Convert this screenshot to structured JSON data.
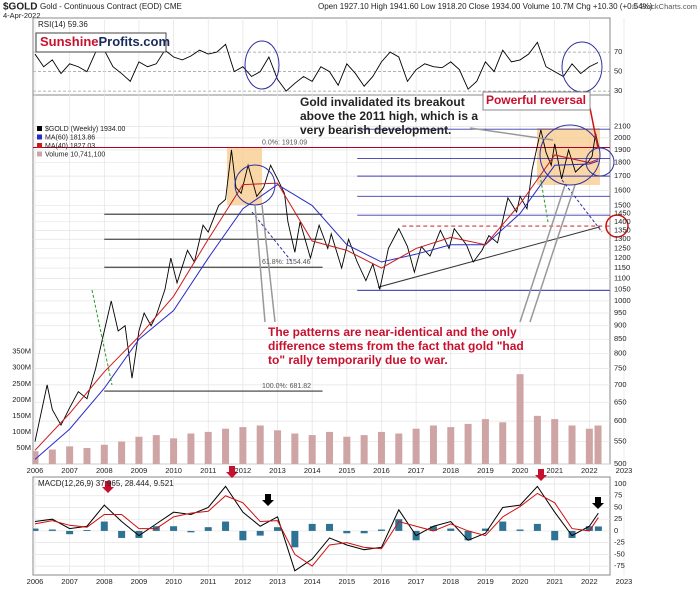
{
  "header": {
    "symbol": "$GOLD",
    "name": "Gold - Continuous Contract (EOD) CME",
    "date": "4-Apr-2022",
    "quote": "Open 1927.10 High 1941.60 Low 1918.20 Close 1934.00 Volume 10.7M Chg +10.30 (+0.54%)",
    "credit": "© StockCharts.com"
  },
  "logo": {
    "part1": "Sunshine",
    "part2": "Profits.com"
  },
  "annotations": {
    "breakout": [
      "Gold invalidated its breakout",
      "above the 2011 high, which is a",
      "very bearish development."
    ],
    "reversal": "Powerful reversal",
    "patterns": [
      "The patterns are near-identical and the only",
      "difference stems from the fact that gold \"had",
      "to\" rally temporarily due to war."
    ]
  },
  "chart_data": [
    {
      "type": "line",
      "title": "RSI(14) 59.36",
      "xlim": [
        2006,
        2023
      ],
      "ylim": [
        26,
        105
      ],
      "yticks": [
        30,
        50,
        70
      ],
      "grid": true,
      "yaxis": "right",
      "x": [
        2006,
        2006.25,
        2006.5,
        2006.75,
        2007,
        2007.25,
        2007.5,
        2007.75,
        2008,
        2008.25,
        2008.5,
        2008.75,
        2009,
        2009.25,
        2009.5,
        2009.75,
        2010,
        2010.25,
        2010.5,
        2010.75,
        2011,
        2011.25,
        2011.5,
        2011.75,
        2012,
        2012.25,
        2012.5,
        2012.75,
        2013,
        2013.25,
        2013.5,
        2013.75,
        2014,
        2014.25,
        2014.5,
        2014.75,
        2015,
        2015.25,
        2015.5,
        2015.75,
        2016,
        2016.25,
        2016.5,
        2016.75,
        2017,
        2017.25,
        2017.5,
        2017.75,
        2018,
        2018.25,
        2018.5,
        2018.75,
        2019,
        2019.25,
        2019.5,
        2019.75,
        2020,
        2020.25,
        2020.5,
        2020.75,
        2021,
        2021.25,
        2021.5,
        2021.75,
        2022,
        2022.25
      ],
      "series": [
        {
          "color": "#000000",
          "values": [
            68,
            55,
            62,
            48,
            58,
            55,
            50,
            70,
            72,
            55,
            48,
            40,
            60,
            55,
            58,
            72,
            65,
            62,
            66,
            72,
            68,
            70,
            78,
            50,
            55,
            45,
            50,
            65,
            42,
            30,
            38,
            45,
            40,
            55,
            50,
            36,
            58,
            48,
            35,
            45,
            60,
            70,
            65,
            40,
            52,
            58,
            55,
            54,
            60,
            52,
            32,
            40,
            60,
            50,
            72,
            60,
            62,
            68,
            80,
            55,
            50,
            45,
            58,
            48,
            55,
            59.36
          ]
        }
      ]
    },
    {
      "type": "line",
      "log": true,
      "xlim": [
        2006,
        2023
      ],
      "ylim": [
        500,
        2400
      ],
      "grid": true,
      "yaxis": "right",
      "legend": "top-left",
      "xticks": [
        2006,
        2007,
        2008,
        2009,
        2010,
        2011,
        2012,
        2013,
        2014,
        2015,
        2016,
        2017,
        2018,
        2019,
        2020,
        2021,
        2022,
        2023
      ],
      "yticks": [
        500,
        550,
        600,
        650,
        700,
        750,
        800,
        850,
        900,
        950,
        1000,
        1050,
        1100,
        1150,
        1200,
        1250,
        1300,
        1350,
        1400,
        1450,
        1500,
        1600,
        1700,
        1800,
        1900,
        2000,
        2100
      ],
      "x": [
        2006,
        2006.35,
        2006.5,
        2006.75,
        2007,
        2007.25,
        2007.5,
        2007.75,
        2008,
        2008.2,
        2008.4,
        2008.6,
        2008.8,
        2009,
        2009.15,
        2009.35,
        2009.5,
        2009.75,
        2009.92,
        2010.1,
        2010.4,
        2010.6,
        2010.85,
        2011,
        2011.3,
        2011.5,
        2011.67,
        2011.8,
        2011.95,
        2012.15,
        2012.4,
        2012.6,
        2012.8,
        2013,
        2013.2,
        2013.3,
        2013.5,
        2013.65,
        2013.95,
        2014.2,
        2014.45,
        2014.55,
        2014.85,
        2015.05,
        2015.3,
        2015.55,
        2015.75,
        2015.95,
        2016.2,
        2016.5,
        2016.75,
        2016.95,
        2017.15,
        2017.4,
        2017.7,
        2017.95,
        2018.1,
        2018.45,
        2018.65,
        2018.9,
        2019.1,
        2019.35,
        2019.65,
        2019.9,
        2020,
        2020.2,
        2020.35,
        2020.6,
        2020.75,
        2020.9,
        2021,
        2021.2,
        2021.4,
        2021.6,
        2021.8,
        2021.95,
        2022.08,
        2022.18,
        2022.26
      ],
      "series": [
        {
          "name": "$GOLD (Weekly) 1934.00",
          "color": "#000000",
          "values": [
            550,
            700,
            630,
            590,
            635,
            680,
            660,
            750,
            880,
            1000,
            880,
            900,
            720,
            880,
            950,
            900,
            940,
            1050,
            1200,
            1080,
            1240,
            1180,
            1380,
            1340,
            1500,
            1540,
            1900,
            1620,
            1580,
            1780,
            1560,
            1620,
            1780,
            1680,
            1580,
            1400,
            1230,
            1400,
            1200,
            1380,
            1250,
            1330,
            1150,
            1300,
            1180,
            1090,
            1170,
            1050,
            1250,
            1360,
            1260,
            1130,
            1260,
            1210,
            1350,
            1250,
            1360,
            1270,
            1180,
            1240,
            1320,
            1280,
            1550,
            1460,
            1560,
            1480,
            1750,
            2070,
            1880,
            1780,
            1950,
            1680,
            1900,
            1730,
            1780,
            1800,
            1850,
            2040,
            1934
          ]
        },
        {
          "name": "MA(60) 1813.86",
          "color": "#2b2bc8",
          "x": [
            2006,
            2007,
            2008,
            2009,
            2010,
            2011,
            2012,
            2013,
            2014,
            2015,
            2016,
            2017,
            2018,
            2019,
            2020,
            2021,
            2022,
            2022.26
          ],
          "values": [
            510,
            580,
            690,
            850,
            960,
            1200,
            1480,
            1640,
            1500,
            1270,
            1180,
            1220,
            1270,
            1270,
            1450,
            1780,
            1790,
            1813.86
          ]
        },
        {
          "name": "MA(40) 1827.03",
          "color": "#cc1a1a",
          "x": [
            2006,
            2007,
            2008,
            2009,
            2010,
            2011,
            2012,
            2013,
            2014,
            2015,
            2016,
            2017,
            2018,
            2019,
            2020,
            2021,
            2022,
            2022.26
          ],
          "values": [
            530,
            620,
            740,
            860,
            1020,
            1300,
            1640,
            1650,
            1290,
            1240,
            1150,
            1250,
            1310,
            1270,
            1510,
            1860,
            1800,
            1827.03
          ]
        }
      ],
      "fib": {
        "color": "#000000",
        "levels": [
          {
            "value": 1919.09,
            "label": "0.0%: 1919.09"
          },
          1446,
          1300,
          {
            "value": 1154.46,
            "label": "61.8%: 1154.46"
          },
          {
            "value": 681.82,
            "label": "100.0%: 681.82"
          }
        ]
      },
      "fib2": {
        "color": "#3a3ab0",
        "levels": [
          2075,
          1832,
          1700,
          1560,
          1440,
          1046
        ]
      },
      "resistance": {
        "value": 1920,
        "color": "#b0002a"
      },
      "support": {
        "value": 1375,
        "color": "#c00000"
      },
      "trendline": {
        "color": "#333333",
        "x": [
          2015.9,
          2022.3
        ],
        "values": [
          1060,
          1370
        ]
      }
    },
    {
      "type": "bar",
      "xlim": [
        2006,
        2023
      ],
      "ylim": [
        0,
        1150
      ],
      "yaxis": "left",
      "legend": "top-left",
      "yticks": [
        {
          "value": 50,
          "label": "50M"
        },
        {
          "value": 100,
          "label": "100M"
        },
        {
          "value": 150,
          "label": "150M"
        },
        {
          "value": 200,
          "label": "200M"
        },
        {
          "value": 250,
          "label": "250M"
        },
        {
          "value": 300,
          "label": "300M"
        },
        {
          "value": 350,
          "label": "350M"
        }
      ],
      "x": [
        2006,
        2006.5,
        2007,
        2007.5,
        2008,
        2008.5,
        2009,
        2009.5,
        2010,
        2010.5,
        2011,
        2011.5,
        2012,
        2012.5,
        2013,
        2013.5,
        2014,
        2014.5,
        2015,
        2015.5,
        2016,
        2016.5,
        2017,
        2017.5,
        2018,
        2018.5,
        2019,
        2019.5,
        2020,
        2020.5,
        2021,
        2021.5,
        2022,
        2022.25
      ],
      "series": [
        {
          "name": "Volume 10,741,100",
          "color": "#cfa4a4",
          "values": [
            40,
            45,
            55,
            50,
            60,
            70,
            85,
            90,
            80,
            95,
            100,
            110,
            115,
            120,
            105,
            95,
            90,
            100,
            85,
            90,
            100,
            95,
            110,
            120,
            115,
            125,
            140,
            130,
            280,
            150,
            140,
            120,
            110,
            120
          ]
        }
      ]
    },
    {
      "type": "line",
      "title": "MACD(12,26,9) 37.965, 28.444, 9.521",
      "xlim": [
        2006,
        2023
      ],
      "ylim": [
        -94,
        115
      ],
      "grid": true,
      "yaxis": "right",
      "xticks": [
        2006,
        2007,
        2008,
        2009,
        2010,
        2011,
        2012,
        2013,
        2014,
        2015,
        2016,
        2017,
        2018,
        2019,
        2020,
        2021,
        2022,
        2023
      ],
      "yticks": [
        -75,
        -50,
        -25,
        0,
        25,
        50,
        75,
        100
      ],
      "x": [
        2006,
        2006.5,
        2007,
        2007.5,
        2008,
        2008.5,
        2009,
        2009.5,
        2010,
        2010.5,
        2011,
        2011.5,
        2012,
        2012.5,
        2013,
        2013.5,
        2014,
        2014.5,
        2015,
        2015.5,
        2016,
        2016.5,
        2017,
        2017.5,
        2018,
        2018.5,
        2019,
        2019.5,
        2020,
        2020.5,
        2021,
        2021.5,
        2022,
        2022.26
      ],
      "series": [
        {
          "type": "bar",
          "color": "#2f7394",
          "values": [
            5,
            3,
            -7,
            2,
            20,
            -15,
            -15,
            10,
            10,
            -3,
            8,
            20,
            -20,
            -10,
            8,
            -35,
            15,
            15,
            -5,
            -5,
            3,
            25,
            -20,
            10,
            5,
            -20,
            5,
            20,
            3,
            15,
            -20,
            -15,
            10,
            9.521
          ]
        },
        {
          "color": "#000000",
          "values": [
            20,
            25,
            5,
            10,
            55,
            20,
            -10,
            15,
            40,
            35,
            50,
            95,
            40,
            10,
            30,
            -85,
            -60,
            -15,
            -30,
            -40,
            -35,
            45,
            -10,
            10,
            20,
            -20,
            -5,
            50,
            55,
            95,
            40,
            -10,
            10,
            37.965
          ]
        },
        {
          "color": "#d01010",
          "values": [
            15,
            22,
            12,
            8,
            35,
            35,
            5,
            5,
            30,
            38,
            42,
            75,
            60,
            20,
            22,
            -50,
            -75,
            -30,
            -25,
            -35,
            -38,
            20,
            10,
            0,
            15,
            0,
            -10,
            30,
            52,
            80,
            60,
            5,
            0,
            28.444
          ]
        }
      ]
    }
  ]
}
